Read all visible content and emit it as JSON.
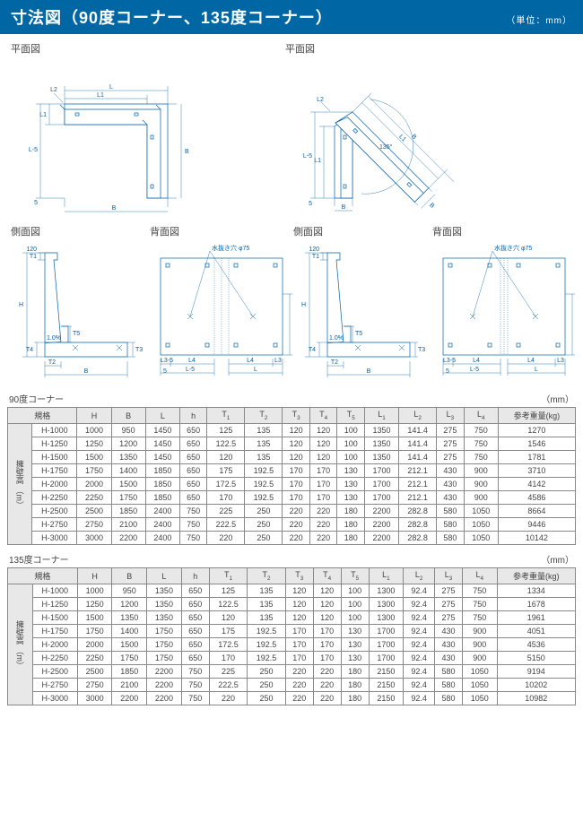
{
  "title": "寸法図（90度コーナー、135度コーナー）",
  "unit": "（単位：mm）",
  "labels": {
    "plan": "平面図",
    "side": "側面図",
    "back": "背面図",
    "drain_hole": "水抜き穴 φ75"
  },
  "dim_letters": {
    "L": "L",
    "L1": "L1",
    "B": "B",
    "L5": "L-5",
    "5": "5",
    "T1": "T1",
    "n120": "120",
    "H": "H",
    "T2": "T2",
    "T4": "T4",
    "T3": "T3",
    "T5": "T5",
    "L3": "L3",
    "L4": "L4",
    "L35": "L3-5",
    "h": "h",
    "pct": "1.0%",
    "L2": "L2",
    "a135": "135°"
  },
  "tables": {
    "t90": {
      "caption": "90度コーナー",
      "unit": "（mm）",
      "row_header": "擁壁高\n（m）",
      "columns": [
        "規格",
        "H",
        "B",
        "L",
        "h",
        "T1",
        "T2",
        "T3",
        "T4",
        "T5",
        "L1",
        "L2",
        "L3",
        "L4",
        "参考重量(kg)"
      ],
      "rows": [
        [
          "H-1000",
          1000,
          950,
          1450,
          650,
          125,
          135,
          120,
          120,
          100,
          1350,
          141.4,
          275,
          750,
          1270
        ],
        [
          "H-1250",
          1250,
          1200,
          1450,
          650,
          122.5,
          135,
          120,
          120,
          100,
          1350,
          141.4,
          275,
          750,
          1546
        ],
        [
          "H-1500",
          1500,
          1350,
          1450,
          650,
          120,
          135,
          120,
          120,
          100,
          1350,
          141.4,
          275,
          750,
          1781
        ],
        [
          "H-1750",
          1750,
          1400,
          1850,
          650,
          175,
          192.5,
          170,
          170,
          130,
          1700,
          212.1,
          430,
          900,
          3710
        ],
        [
          "H-2000",
          2000,
          1500,
          1850,
          650,
          172.5,
          192.5,
          170,
          170,
          130,
          1700,
          212.1,
          430,
          900,
          4142
        ],
        [
          "H-2250",
          2250,
          1750,
          1850,
          650,
          170,
          192.5,
          170,
          170,
          130,
          1700,
          212.1,
          430,
          900,
          4586
        ],
        [
          "H-2500",
          2500,
          1850,
          2400,
          750,
          225,
          250,
          220,
          220,
          180,
          2200,
          282.8,
          580,
          1050,
          8664
        ],
        [
          "H-2750",
          2750,
          2100,
          2400,
          750,
          222.5,
          250,
          220,
          220,
          180,
          2200,
          282.8,
          580,
          1050,
          9446
        ],
        [
          "H-3000",
          3000,
          2200,
          2400,
          750,
          220,
          250,
          220,
          220,
          180,
          2200,
          282.8,
          580,
          1050,
          10142
        ]
      ]
    },
    "t135": {
      "caption": "135度コーナー",
      "unit": "（mm）",
      "row_header": "擁壁高\n（m）",
      "columns": [
        "規格",
        "H",
        "B",
        "L",
        "h",
        "T1",
        "T2",
        "T3",
        "T4",
        "T5",
        "L1",
        "L2",
        "L3",
        "L4",
        "参考重量(kg)"
      ],
      "rows": [
        [
          "H-1000",
          1000,
          950,
          1350,
          650,
          125,
          135,
          120,
          120,
          100,
          1300,
          92.4,
          275,
          750,
          1334
        ],
        [
          "H-1250",
          1250,
          1200,
          1350,
          650,
          122.5,
          135,
          120,
          120,
          100,
          1300,
          92.4,
          275,
          750,
          1678
        ],
        [
          "H-1500",
          1500,
          1350,
          1350,
          650,
          120,
          135,
          120,
          120,
          100,
          1300,
          92.4,
          275,
          750,
          1961
        ],
        [
          "H-1750",
          1750,
          1400,
          1750,
          650,
          175,
          192.5,
          170,
          170,
          130,
          1700,
          92.4,
          430,
          900,
          4051
        ],
        [
          "H-2000",
          2000,
          1500,
          1750,
          650,
          172.5,
          192.5,
          170,
          170,
          130,
          1700,
          92.4,
          430,
          900,
          4536
        ],
        [
          "H-2250",
          2250,
          1750,
          1750,
          650,
          170,
          192.5,
          170,
          170,
          130,
          1700,
          92.4,
          430,
          900,
          5150
        ],
        [
          "H-2500",
          2500,
          1850,
          2200,
          750,
          225,
          250,
          220,
          220,
          180,
          2150,
          92.4,
          580,
          1050,
          9194
        ],
        [
          "H-2750",
          2750,
          2100,
          2200,
          750,
          222.5,
          250,
          220,
          220,
          180,
          2150,
          92.4,
          580,
          1050,
          10202
        ],
        [
          "H-3000",
          3000,
          2200,
          2200,
          750,
          220,
          250,
          220,
          220,
          180,
          2150,
          92.4,
          580,
          1050,
          10982
        ]
      ]
    }
  },
  "style": {
    "title_bg": "#0066a4",
    "title_color": "#ffffff",
    "line_color": "#0060a8",
    "table_border": "#888888",
    "header_bg": "#e8e8e8"
  }
}
